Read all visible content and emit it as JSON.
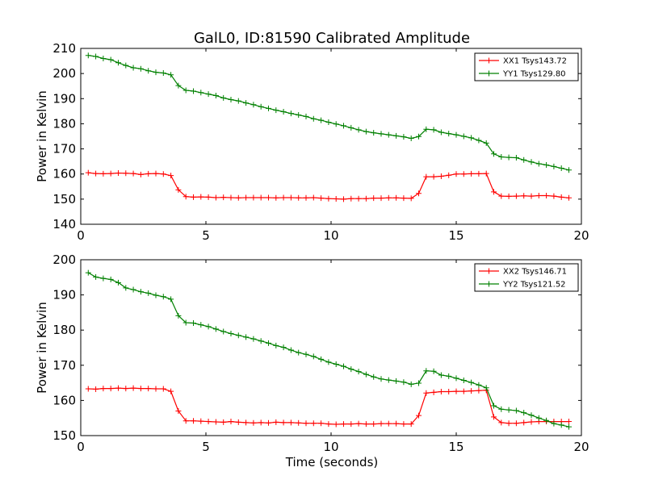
{
  "figure": {
    "title": "GalL0, ID:81590 Calibrated Amplitude",
    "xlabel": "Time (seconds)"
  },
  "colors": {
    "red": "#ff0000",
    "green": "#008000"
  },
  "chart_data": [
    {
      "type": "line",
      "ylabel": "Power in Kelvin",
      "xlim": [
        0,
        20
      ],
      "ylim": [
        140,
        210
      ],
      "xticks": [
        0,
        5,
        10,
        15,
        20
      ],
      "yticks": [
        140,
        150,
        160,
        170,
        180,
        190,
        200,
        210
      ],
      "grid": false,
      "legend": "top-right",
      "x": [
        0.3,
        0.6,
        0.9,
        1.2,
        1.5,
        1.8,
        2.1,
        2.4,
        2.7,
        3.0,
        3.3,
        3.6,
        3.9,
        4.2,
        4.5,
        4.8,
        5.1,
        5.4,
        5.7,
        6.0,
        6.3,
        6.6,
        6.9,
        7.2,
        7.5,
        7.8,
        8.1,
        8.4,
        8.7,
        9.0,
        9.3,
        9.6,
        9.9,
        10.2,
        10.5,
        10.8,
        11.1,
        11.4,
        11.7,
        12.0,
        12.3,
        12.6,
        12.9,
        13.2,
        13.5,
        13.8,
        14.1,
        14.4,
        14.7,
        15.0,
        15.3,
        15.6,
        15.9,
        16.2,
        16.5,
        16.8,
        17.1,
        17.4,
        17.7,
        18.0,
        18.3,
        18.6,
        18.9,
        19.2,
        19.5
      ],
      "series": [
        {
          "name": "XX1 Tsys143.72",
          "color": "#ff0000",
          "values": [
            160.5,
            160.2,
            160.1,
            160.2,
            160.4,
            160.3,
            160.2,
            159.8,
            160.1,
            160.2,
            160.0,
            159.4,
            153.7,
            151.0,
            150.8,
            150.9,
            150.8,
            150.6,
            150.7,
            150.6,
            150.5,
            150.6,
            150.6,
            150.6,
            150.6,
            150.5,
            150.6,
            150.6,
            150.5,
            150.5,
            150.6,
            150.4,
            150.2,
            150.1,
            150.0,
            150.2,
            150.2,
            150.2,
            150.4,
            150.4,
            150.5,
            150.5,
            150.4,
            150.3,
            152.3,
            158.9,
            158.9,
            159.1,
            159.5,
            160.0,
            160.0,
            160.1,
            160.1,
            160.2,
            152.9,
            151.2,
            151.1,
            151.2,
            151.3,
            151.2,
            151.4,
            151.4,
            151.2,
            150.8,
            150.5
          ]
        },
        {
          "name": "YY1 Tsys129.80",
          "color": "#008000",
          "values": [
            207.2,
            206.8,
            206.0,
            205.5,
            204.3,
            203.2,
            202.3,
            201.9,
            201.1,
            200.5,
            200.2,
            199.5,
            195.2,
            193.3,
            193.0,
            192.4,
            191.8,
            191.2,
            190.3,
            189.6,
            189.1,
            188.3,
            187.6,
            186.8,
            186.1,
            185.4,
            184.8,
            184.1,
            183.5,
            182.9,
            182.0,
            181.4,
            180.6,
            179.9,
            179.2,
            178.4,
            177.6,
            176.9,
            176.4,
            176.0,
            175.6,
            175.2,
            174.8,
            174.2,
            174.9,
            177.8,
            177.6,
            176.6,
            176.1,
            175.6,
            175.0,
            174.4,
            173.4,
            172.3,
            168.0,
            166.8,
            166.6,
            166.5,
            165.6,
            164.8,
            164.1,
            163.6,
            163.0,
            162.3,
            161.6
          ]
        }
      ]
    },
    {
      "type": "line",
      "ylabel": "Power in Kelvin",
      "xlim": [
        0,
        20
      ],
      "ylim": [
        150,
        200
      ],
      "xticks": [
        0,
        5,
        10,
        15,
        20
      ],
      "yticks": [
        150,
        160,
        170,
        180,
        190,
        200
      ],
      "grid": false,
      "legend": "top-right",
      "x": [
        0.3,
        0.6,
        0.9,
        1.2,
        1.5,
        1.8,
        2.1,
        2.4,
        2.7,
        3.0,
        3.3,
        3.6,
        3.9,
        4.2,
        4.5,
        4.8,
        5.1,
        5.4,
        5.7,
        6.0,
        6.3,
        6.6,
        6.9,
        7.2,
        7.5,
        7.8,
        8.1,
        8.4,
        8.7,
        9.0,
        9.3,
        9.6,
        9.9,
        10.2,
        10.5,
        10.8,
        11.1,
        11.4,
        11.7,
        12.0,
        12.3,
        12.6,
        12.9,
        13.2,
        13.5,
        13.8,
        14.1,
        14.4,
        14.7,
        15.0,
        15.3,
        15.6,
        15.9,
        16.2,
        16.5,
        16.8,
        17.1,
        17.4,
        17.7,
        18.0,
        18.3,
        18.6,
        18.9,
        19.2,
        19.5
      ],
      "series": [
        {
          "name": "XX2 Tsys146.71",
          "color": "#ff0000",
          "values": [
            163.3,
            163.2,
            163.4,
            163.4,
            163.5,
            163.4,
            163.5,
            163.4,
            163.4,
            163.3,
            163.3,
            162.6,
            157.0,
            154.2,
            154.2,
            154.1,
            154.0,
            153.9,
            153.8,
            154.0,
            153.8,
            153.7,
            153.6,
            153.7,
            153.6,
            153.8,
            153.7,
            153.7,
            153.6,
            153.5,
            153.5,
            153.5,
            153.3,
            153.2,
            153.3,
            153.3,
            153.4,
            153.3,
            153.3,
            153.4,
            153.4,
            153.4,
            153.3,
            153.3,
            155.7,
            162.1,
            162.3,
            162.5,
            162.5,
            162.6,
            162.6,
            162.7,
            162.8,
            162.9,
            155.3,
            153.7,
            153.5,
            153.5,
            153.7,
            153.9,
            154.0,
            154.0,
            154.0,
            154.0,
            154.0
          ]
        },
        {
          "name": "YY2 Tsys121.52",
          "color": "#008000",
          "values": [
            196.3,
            195.1,
            194.7,
            194.4,
            193.5,
            192.0,
            191.5,
            190.9,
            190.5,
            189.9,
            189.5,
            188.8,
            184.1,
            182.1,
            182.0,
            181.5,
            181.0,
            180.3,
            179.6,
            179.0,
            178.5,
            178.0,
            177.5,
            176.9,
            176.3,
            175.6,
            175.1,
            174.3,
            173.6,
            173.1,
            172.5,
            171.7,
            170.9,
            170.3,
            169.7,
            168.9,
            168.2,
            167.4,
            166.7,
            166.1,
            165.8,
            165.5,
            165.2,
            164.6,
            164.9,
            168.4,
            168.3,
            167.2,
            166.9,
            166.3,
            165.7,
            165.1,
            164.4,
            163.6,
            158.5,
            157.5,
            157.3,
            157.1,
            156.5,
            155.8,
            155.0,
            154.3,
            153.4,
            153.0,
            152.5
          ]
        }
      ]
    }
  ]
}
